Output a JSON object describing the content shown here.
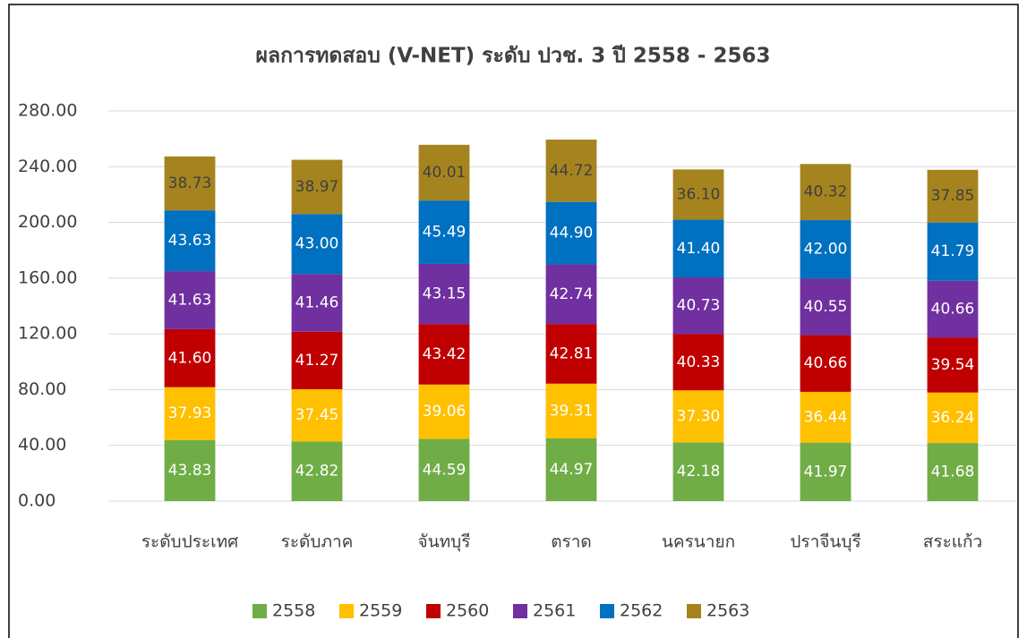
{
  "chart_data": {
    "type": "stacked_bar",
    "title": "ผลการทดสอบ (V-NET) ระดับ ปวช. 3 ปี 2558 - 2563",
    "categories": [
      "ระดับประเทศ",
      "ระดับภาค",
      "จันทบุรี",
      "ตราด",
      "นครนายก",
      "ปราจีนบุรี",
      "สระแก้ว"
    ],
    "series": [
      {
        "name": "2558",
        "color": "#70ad47",
        "label_color": "#ffffff",
        "values": [
          43.83,
          42.82,
          44.59,
          44.97,
          42.18,
          41.97,
          41.68
        ],
        "value_labels": [
          "43.83",
          "42.82",
          "44.59",
          "44.97",
          "42.18",
          "41.97",
          "41.68"
        ]
      },
      {
        "name": "2559",
        "color": "#ffc000",
        "label_color": "#ffffff",
        "values": [
          37.93,
          37.45,
          39.06,
          39.31,
          37.3,
          36.44,
          36.24
        ],
        "value_labels": [
          "37.93",
          "37.45",
          "39.06",
          "39.31",
          "37.30",
          "36.44",
          "36.24"
        ]
      },
      {
        "name": "2560",
        "color": "#c00000",
        "label_color": "#ffffff",
        "values": [
          41.6,
          41.27,
          43.42,
          42.81,
          40.33,
          40.66,
          39.54
        ],
        "value_labels": [
          "41.60",
          "41.27",
          "43.42",
          "42.81",
          "40.33",
          "40.66",
          "39.54"
        ]
      },
      {
        "name": "2561",
        "color": "#7030a0",
        "label_color": "#ffffff",
        "values": [
          41.63,
          41.46,
          43.15,
          42.74,
          40.73,
          40.55,
          40.66
        ],
        "value_labels": [
          "41.63",
          "41.46",
          "43.15",
          "42.74",
          "40.73",
          "40.55",
          "40.66"
        ]
      },
      {
        "name": "2562",
        "color": "#0070c0",
        "label_color": "#ffffff",
        "values": [
          43.63,
          43.0,
          45.49,
          44.9,
          41.4,
          42.0,
          41.79
        ],
        "value_labels": [
          "43.63",
          "43.00",
          "45.49",
          "44.90",
          "41.40",
          "42.00",
          "41.79"
        ]
      },
      {
        "name": "2563",
        "color": "#a5841f",
        "label_color": "#404040",
        "values": [
          38.73,
          38.97,
          40.01,
          44.72,
          36.1,
          40.32,
          37.85
        ],
        "value_labels": [
          "38.73",
          "38.97",
          "40.01",
          "44.72",
          "36.10",
          "40.32",
          "37.85"
        ]
      }
    ],
    "ylim": [
      0,
      280
    ],
    "yticks": [
      {
        "value": 0,
        "label": "0.00"
      },
      {
        "value": 40,
        "label": "40.00"
      },
      {
        "value": 80,
        "label": "80.00"
      },
      {
        "value": 120,
        "label": "120.00"
      },
      {
        "value": 160,
        "label": "160.00"
      },
      {
        "value": 200,
        "label": "200.00"
      },
      {
        "value": 240,
        "label": "240.00"
      },
      {
        "value": 280,
        "label": "280.00"
      }
    ],
    "grid": true,
    "legend": "bottom"
  }
}
